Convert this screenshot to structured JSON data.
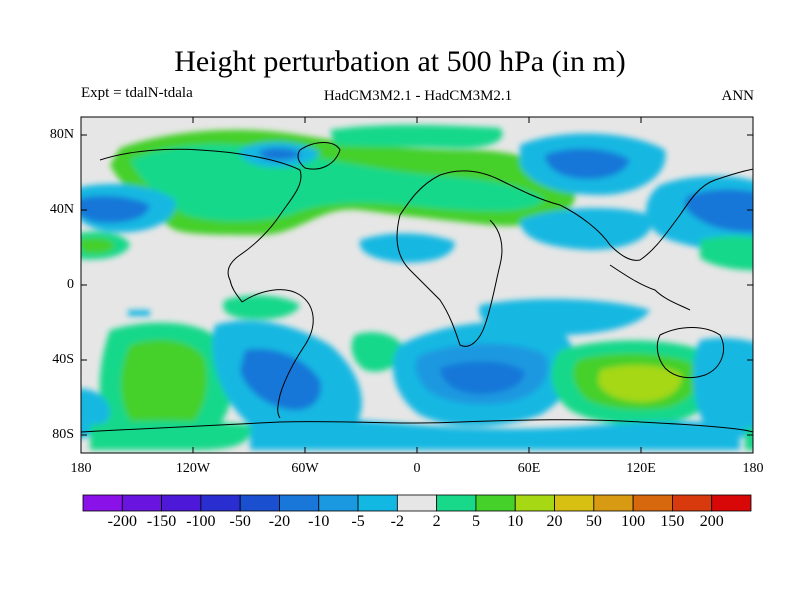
{
  "title": "Height perturbation at 500 hPa (in m)",
  "subtitle_left": "Expt = tdalN-tdala",
  "subtitle_center": "HadCM3M2.1 - HadCM3M2.1",
  "subtitle_right": "ANN",
  "map": {
    "lat_ticks": [
      "80N",
      "40N",
      "0",
      "40S",
      "80S"
    ],
    "lon_ticks": [
      "180",
      "120W",
      "60W",
      "0",
      "60E",
      "120E",
      "180"
    ]
  },
  "colorbar": {
    "labels": [
      "-200",
      "-150",
      "-100",
      "-50",
      "-20",
      "-10",
      "-5",
      "-2",
      "2",
      "5",
      "10",
      "20",
      "50",
      "100",
      "150",
      "200"
    ],
    "colors": [
      "#8a12e8",
      "#6a14e0",
      "#4d18d8",
      "#2a2ed0",
      "#1a50d0",
      "#1877d8",
      "#1a98e0",
      "#12b8e2",
      "#e6e6e6",
      "#18d88a",
      "#45d02a",
      "#a6d814",
      "#d8c012",
      "#d89a12",
      "#d8680e",
      "#d83a0e",
      "#d80808"
    ]
  },
  "colors": {
    "background": "#e6e6e6",
    "coast": "#000000"
  }
}
